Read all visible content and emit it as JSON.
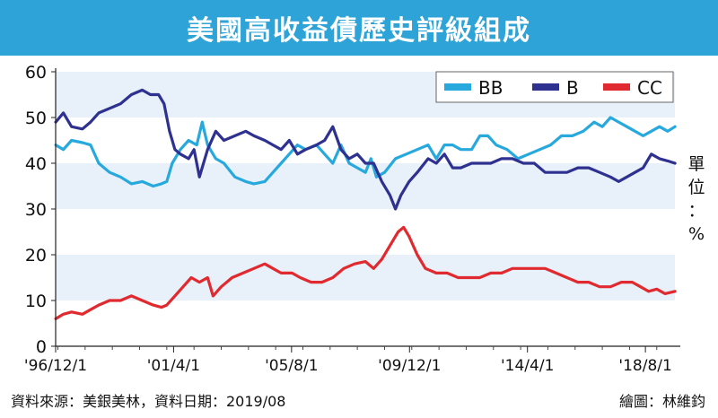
{
  "title": "美國高收益債歷史評級組成",
  "unit": "單位：%",
  "source": "資料來源：美銀美林，資料日期：2019/08",
  "credit": "繪圖：林維鈞",
  "colors": {
    "title_bg": "#2ea3d8",
    "BB": "#27a9dd",
    "B": "#2e3190",
    "CC": "#e02a2f",
    "band": "#e8f1f9"
  },
  "chart_data": {
    "type": "line",
    "title": "美國高收益債歷史評級組成",
    "xlabel": "",
    "ylabel": "單位：%",
    "xlim": [
      1996.917,
      2019.667
    ],
    "ylim": [
      0,
      60
    ],
    "yticks": [
      0,
      10,
      20,
      30,
      40,
      50,
      60
    ],
    "xticks": [
      {
        "label": "'96/12/1",
        "value": 1996.917
      },
      {
        "label": "'01/4/1",
        "value": 2001.25
      },
      {
        "label": "'05/8/1",
        "value": 2005.583
      },
      {
        "label": "'09/12/1",
        "value": 2009.917
      },
      {
        "label": "'14/4/1",
        "value": 2014.25
      },
      {
        "label": "'18/8/1",
        "value": 2018.583
      }
    ],
    "grid": "horizontal bands",
    "legend": "top-right",
    "series": [
      {
        "name": "BB",
        "color": "#27a9dd",
        "points": [
          [
            1996.92,
            44
          ],
          [
            1997.2,
            43
          ],
          [
            1997.5,
            45
          ],
          [
            1997.9,
            44.5
          ],
          [
            1998.2,
            44
          ],
          [
            1998.5,
            40
          ],
          [
            1998.9,
            38
          ],
          [
            1999.3,
            37
          ],
          [
            1999.7,
            35.5
          ],
          [
            2000.1,
            36
          ],
          [
            2000.5,
            35
          ],
          [
            2000.8,
            35.5
          ],
          [
            2001.0,
            36
          ],
          [
            2001.2,
            40
          ],
          [
            2001.5,
            43
          ],
          [
            2001.8,
            45
          ],
          [
            2002.1,
            44
          ],
          [
            2002.3,
            49
          ],
          [
            2002.5,
            44
          ],
          [
            2002.8,
            41
          ],
          [
            2003.1,
            40
          ],
          [
            2003.5,
            37
          ],
          [
            2003.9,
            36
          ],
          [
            2004.2,
            35.5
          ],
          [
            2004.6,
            36
          ],
          [
            2004.9,
            38
          ],
          [
            2005.2,
            40
          ],
          [
            2005.5,
            42
          ],
          [
            2005.8,
            44
          ],
          [
            2006.1,
            43
          ],
          [
            2006.5,
            44
          ],
          [
            2006.8,
            42
          ],
          [
            2007.1,
            40
          ],
          [
            2007.4,
            44
          ],
          [
            2007.7,
            40
          ],
          [
            2008.0,
            39
          ],
          [
            2008.3,
            38
          ],
          [
            2008.5,
            41
          ],
          [
            2008.7,
            37
          ],
          [
            2009.0,
            38
          ],
          [
            2009.4,
            41
          ],
          [
            2009.8,
            42
          ],
          [
            2010.2,
            43
          ],
          [
            2010.6,
            44
          ],
          [
            2010.9,
            41
          ],
          [
            2011.2,
            44
          ],
          [
            2011.5,
            44
          ],
          [
            2011.8,
            43
          ],
          [
            2012.2,
            43
          ],
          [
            2012.5,
            46
          ],
          [
            2012.8,
            46
          ],
          [
            2013.1,
            44
          ],
          [
            2013.5,
            43
          ],
          [
            2013.9,
            41
          ],
          [
            2014.3,
            42
          ],
          [
            2014.7,
            43
          ],
          [
            2015.1,
            44
          ],
          [
            2015.5,
            46
          ],
          [
            2015.9,
            46
          ],
          [
            2016.3,
            47
          ],
          [
            2016.7,
            49
          ],
          [
            2017.0,
            48
          ],
          [
            2017.3,
            50
          ],
          [
            2017.6,
            49
          ],
          [
            2017.9,
            48
          ],
          [
            2018.2,
            47
          ],
          [
            2018.5,
            46
          ],
          [
            2018.8,
            47
          ],
          [
            2019.1,
            48
          ],
          [
            2019.4,
            47
          ],
          [
            2019.67,
            48
          ]
        ]
      },
      {
        "name": "B",
        "color": "#2e3190",
        "points": [
          [
            1996.92,
            49
          ],
          [
            1997.2,
            51
          ],
          [
            1997.5,
            48
          ],
          [
            1997.9,
            47.5
          ],
          [
            1998.2,
            49
          ],
          [
            1998.5,
            51
          ],
          [
            1998.9,
            52
          ],
          [
            1999.3,
            53
          ],
          [
            1999.7,
            55
          ],
          [
            2000.1,
            56
          ],
          [
            2000.4,
            55
          ],
          [
            2000.7,
            55
          ],
          [
            2000.9,
            53
          ],
          [
            2001.1,
            47
          ],
          [
            2001.3,
            43
          ],
          [
            2001.5,
            42
          ],
          [
            2001.8,
            41
          ],
          [
            2002.0,
            43
          ],
          [
            2002.2,
            37
          ],
          [
            2002.5,
            43
          ],
          [
            2002.8,
            47
          ],
          [
            2003.1,
            45
          ],
          [
            2003.5,
            46
          ],
          [
            2003.9,
            47
          ],
          [
            2004.2,
            46
          ],
          [
            2004.6,
            45
          ],
          [
            2004.9,
            44
          ],
          [
            2005.2,
            43
          ],
          [
            2005.5,
            45
          ],
          [
            2005.8,
            42
          ],
          [
            2006.1,
            43
          ],
          [
            2006.5,
            44
          ],
          [
            2006.8,
            45
          ],
          [
            2007.1,
            48
          ],
          [
            2007.4,
            43
          ],
          [
            2007.7,
            41
          ],
          [
            2008.0,
            42
          ],
          [
            2008.3,
            40
          ],
          [
            2008.6,
            40
          ],
          [
            2008.9,
            36
          ],
          [
            2009.2,
            33
          ],
          [
            2009.4,
            30
          ],
          [
            2009.6,
            33
          ],
          [
            2009.9,
            36
          ],
          [
            2010.2,
            38
          ],
          [
            2010.6,
            41
          ],
          [
            2010.9,
            40
          ],
          [
            2011.2,
            42
          ],
          [
            2011.5,
            39
          ],
          [
            2011.8,
            39
          ],
          [
            2012.2,
            40
          ],
          [
            2012.5,
            40
          ],
          [
            2012.9,
            40
          ],
          [
            2013.3,
            41
          ],
          [
            2013.7,
            41
          ],
          [
            2014.1,
            40
          ],
          [
            2014.5,
            40
          ],
          [
            2014.9,
            38
          ],
          [
            2015.3,
            38
          ],
          [
            2015.7,
            38
          ],
          [
            2016.1,
            39
          ],
          [
            2016.5,
            39
          ],
          [
            2016.9,
            38
          ],
          [
            2017.3,
            37
          ],
          [
            2017.6,
            36
          ],
          [
            2017.9,
            37
          ],
          [
            2018.2,
            38
          ],
          [
            2018.5,
            39
          ],
          [
            2018.8,
            42
          ],
          [
            2019.1,
            41
          ],
          [
            2019.4,
            40.5
          ],
          [
            2019.67,
            40
          ]
        ]
      },
      {
        "name": "CC",
        "color": "#e02a2f",
        "points": [
          [
            1996.92,
            6
          ],
          [
            1997.2,
            7
          ],
          [
            1997.5,
            7.5
          ],
          [
            1997.9,
            7
          ],
          [
            1998.2,
            8
          ],
          [
            1998.5,
            9
          ],
          [
            1998.9,
            10
          ],
          [
            1999.3,
            10
          ],
          [
            1999.7,
            11
          ],
          [
            2000.1,
            10
          ],
          [
            2000.5,
            9
          ],
          [
            2000.8,
            8.5
          ],
          [
            2001.0,
            9
          ],
          [
            2001.3,
            11
          ],
          [
            2001.6,
            13
          ],
          [
            2001.9,
            15
          ],
          [
            2002.2,
            14
          ],
          [
            2002.5,
            15
          ],
          [
            2002.7,
            11
          ],
          [
            2003.0,
            13
          ],
          [
            2003.4,
            15
          ],
          [
            2003.8,
            16
          ],
          [
            2004.2,
            17
          ],
          [
            2004.6,
            18
          ],
          [
            2004.9,
            17
          ],
          [
            2005.2,
            16
          ],
          [
            2005.6,
            16
          ],
          [
            2005.9,
            15
          ],
          [
            2006.3,
            14
          ],
          [
            2006.7,
            14
          ],
          [
            2007.1,
            15
          ],
          [
            2007.5,
            17
          ],
          [
            2007.9,
            18
          ],
          [
            2008.3,
            18.5
          ],
          [
            2008.6,
            17
          ],
          [
            2008.9,
            19
          ],
          [
            2009.2,
            22
          ],
          [
            2009.5,
            25
          ],
          [
            2009.7,
            26
          ],
          [
            2009.9,
            24
          ],
          [
            2010.2,
            20
          ],
          [
            2010.5,
            17
          ],
          [
            2010.9,
            16
          ],
          [
            2011.3,
            16
          ],
          [
            2011.7,
            15
          ],
          [
            2012.1,
            15
          ],
          [
            2012.5,
            15
          ],
          [
            2012.9,
            16
          ],
          [
            2013.3,
            16
          ],
          [
            2013.7,
            17
          ],
          [
            2014.1,
            17
          ],
          [
            2014.5,
            17
          ],
          [
            2014.9,
            17
          ],
          [
            2015.3,
            16
          ],
          [
            2015.7,
            15
          ],
          [
            2016.1,
            14
          ],
          [
            2016.5,
            14
          ],
          [
            2016.9,
            13
          ],
          [
            2017.3,
            13
          ],
          [
            2017.7,
            14
          ],
          [
            2018.1,
            14
          ],
          [
            2018.4,
            13
          ],
          [
            2018.7,
            12
          ],
          [
            2019.0,
            12.5
          ],
          [
            2019.3,
            11.5
          ],
          [
            2019.67,
            12
          ]
        ]
      }
    ]
  }
}
